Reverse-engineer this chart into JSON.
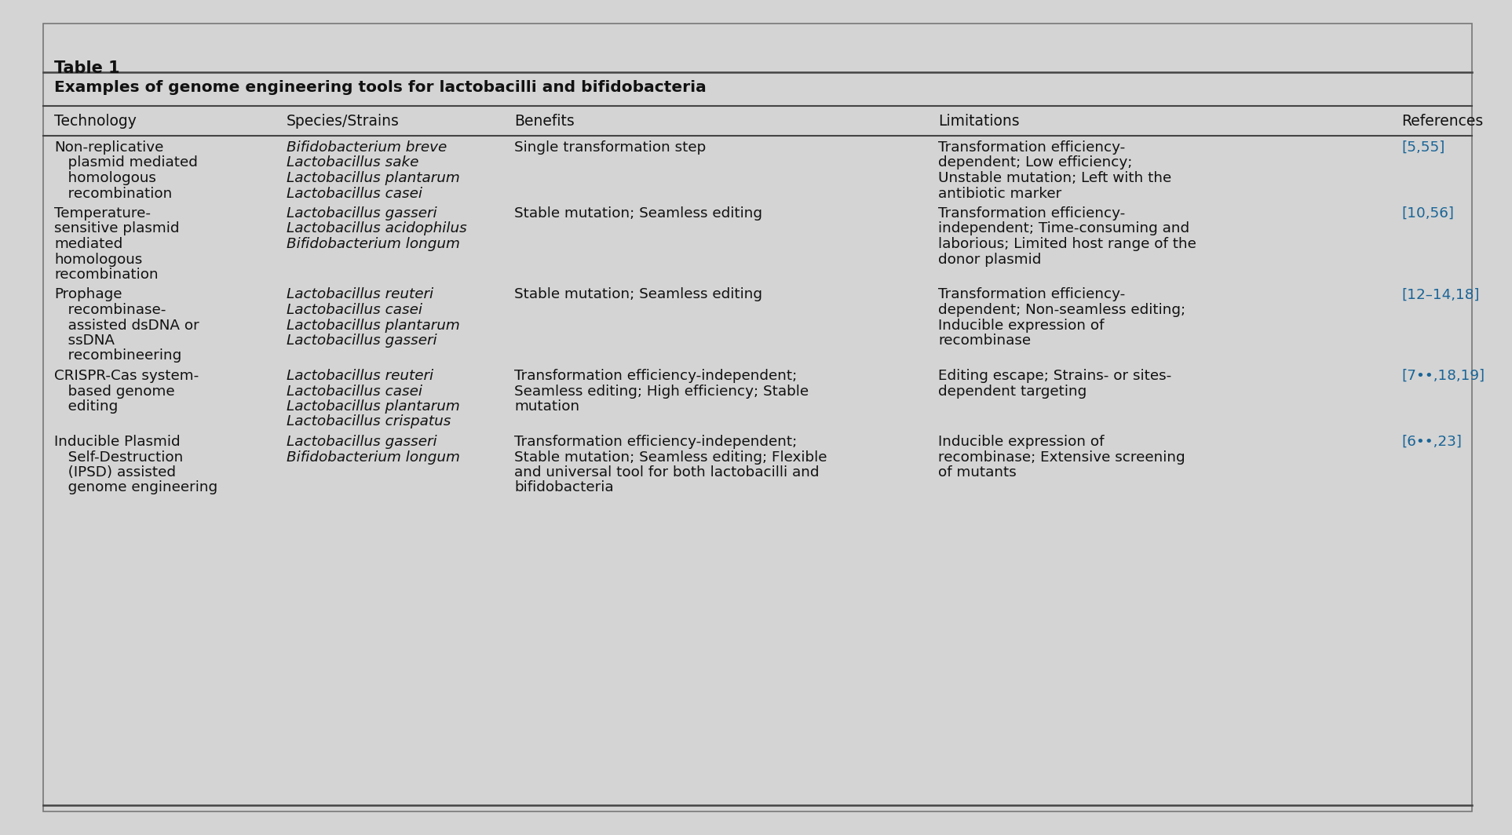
{
  "title": "Table 1",
  "subtitle": "Examples of genome engineering tools for lactobacilli and bifidobacteria",
  "headers": [
    "Technology",
    "Species/Strains",
    "Benefits",
    "Limitations",
    "References"
  ],
  "background_color": "#d4d4d4",
  "text_color": "#111111",
  "ref_color": "#1a6496",
  "rows": [
    {
      "technology": [
        "Non-replicative",
        "   plasmid mediated",
        "   homologous",
        "   recombination"
      ],
      "species": [
        "Bifidobacterium breve",
        "Lactobacillus sake",
        "Lactobacillus plantarum",
        "Lactobacillus casei"
      ],
      "benefits": [
        "Single transformation step"
      ],
      "limitations": [
        "Transformation efficiency-",
        "dependent; Low efficiency;",
        "Unstable mutation; Left with the",
        "antibiotic marker"
      ],
      "references": [
        "[5,55]"
      ]
    },
    {
      "technology": [
        "Temperature-",
        "sensitive plasmid",
        "mediated",
        "homologous",
        "recombination"
      ],
      "species": [
        "Lactobacillus gasseri",
        "Lactobacillus acidophilus",
        "Bifidobacterium longum"
      ],
      "benefits": [
        "Stable mutation; Seamless editing"
      ],
      "limitations": [
        "Transformation efficiency-",
        "independent; Time-consuming and",
        "laborious; Limited host range of the",
        "donor plasmid"
      ],
      "references": [
        "[10,56]"
      ]
    },
    {
      "technology": [
        "Prophage",
        "   recombinase-",
        "   assisted dsDNA or",
        "   ssDNA",
        "   recombineering"
      ],
      "species": [
        "Lactobacillus reuteri",
        "Lactobacillus casei",
        "Lactobacillus plantarum",
        "Lactobacillus gasseri"
      ],
      "benefits": [
        "Stable mutation; Seamless editing"
      ],
      "limitations": [
        "Transformation efficiency-",
        "dependent; Non-seamless editing;",
        "Inducible expression of",
        "recombinase"
      ],
      "references": [
        "[12–14,18]"
      ]
    },
    {
      "technology": [
        "CRISPR-Cas system-",
        "   based genome",
        "   editing"
      ],
      "species": [
        "Lactobacillus reuteri",
        "Lactobacillus casei",
        "Lactobacillus plantarum",
        "Lactobacillus crispatus"
      ],
      "benefits": [
        "Transformation efficiency-independent;",
        "Seamless editing; High efficiency; Stable",
        "mutation"
      ],
      "limitations": [
        "Editing escape; Strains- or sites-",
        "dependent targeting"
      ],
      "references": [
        "[7••,18,19]"
      ]
    },
    {
      "technology": [
        "Inducible Plasmid",
        "   Self-Destruction",
        "   (IPSD) assisted",
        "   genome engineering"
      ],
      "species": [
        "Lactobacillus gasseri",
        "Bifidobacterium longum"
      ],
      "benefits": [
        "Transformation efficiency-independent;",
        "Stable mutation; Seamless editing; Flexible",
        "and universal tool for both lactobacilli and",
        "bifidobacteria"
      ],
      "limitations": [
        "Inducible expression of",
        "recombinase; Extensive screening",
        "of mutants"
      ],
      "references": [
        "[6••,23]"
      ]
    }
  ]
}
